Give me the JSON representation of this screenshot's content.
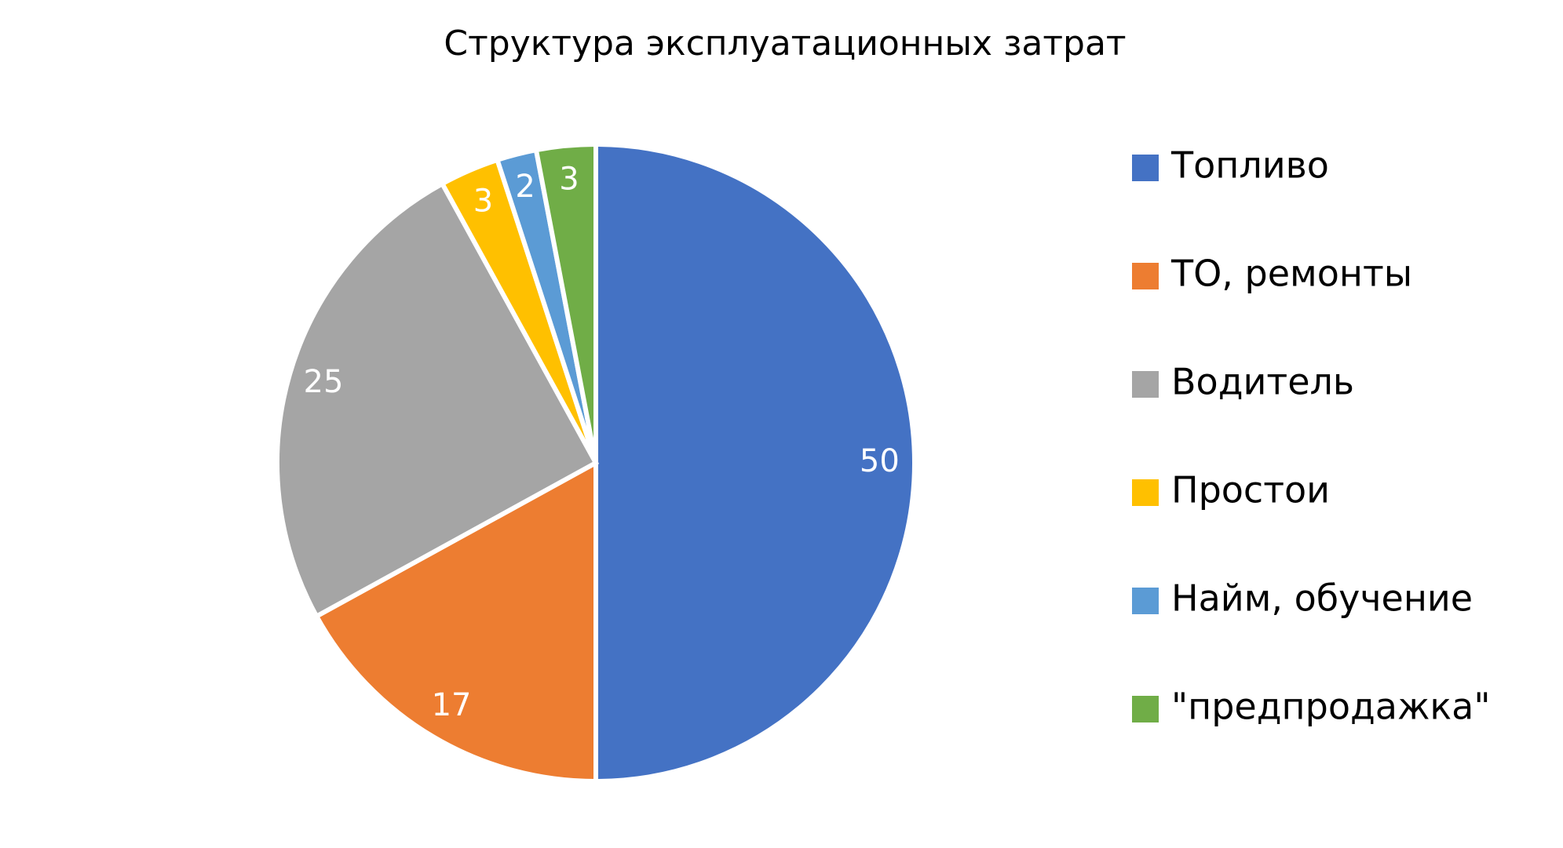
{
  "chart_data": {
    "type": "pie",
    "title": "Структура эксплуатационных затрат",
    "categories": [
      "Топливо",
      "ТО, ремонты",
      "Водитель",
      "Простои",
      "Найм, обучение",
      "\"предпродажка\""
    ],
    "values": [
      50,
      17,
      25,
      3,
      2,
      3
    ],
    "colors": [
      "#4472c4",
      "#ed7d31",
      "#a5a5a5",
      "#ffc000",
      "#5b9bd5",
      "#70ad47"
    ],
    "legend": "right"
  }
}
